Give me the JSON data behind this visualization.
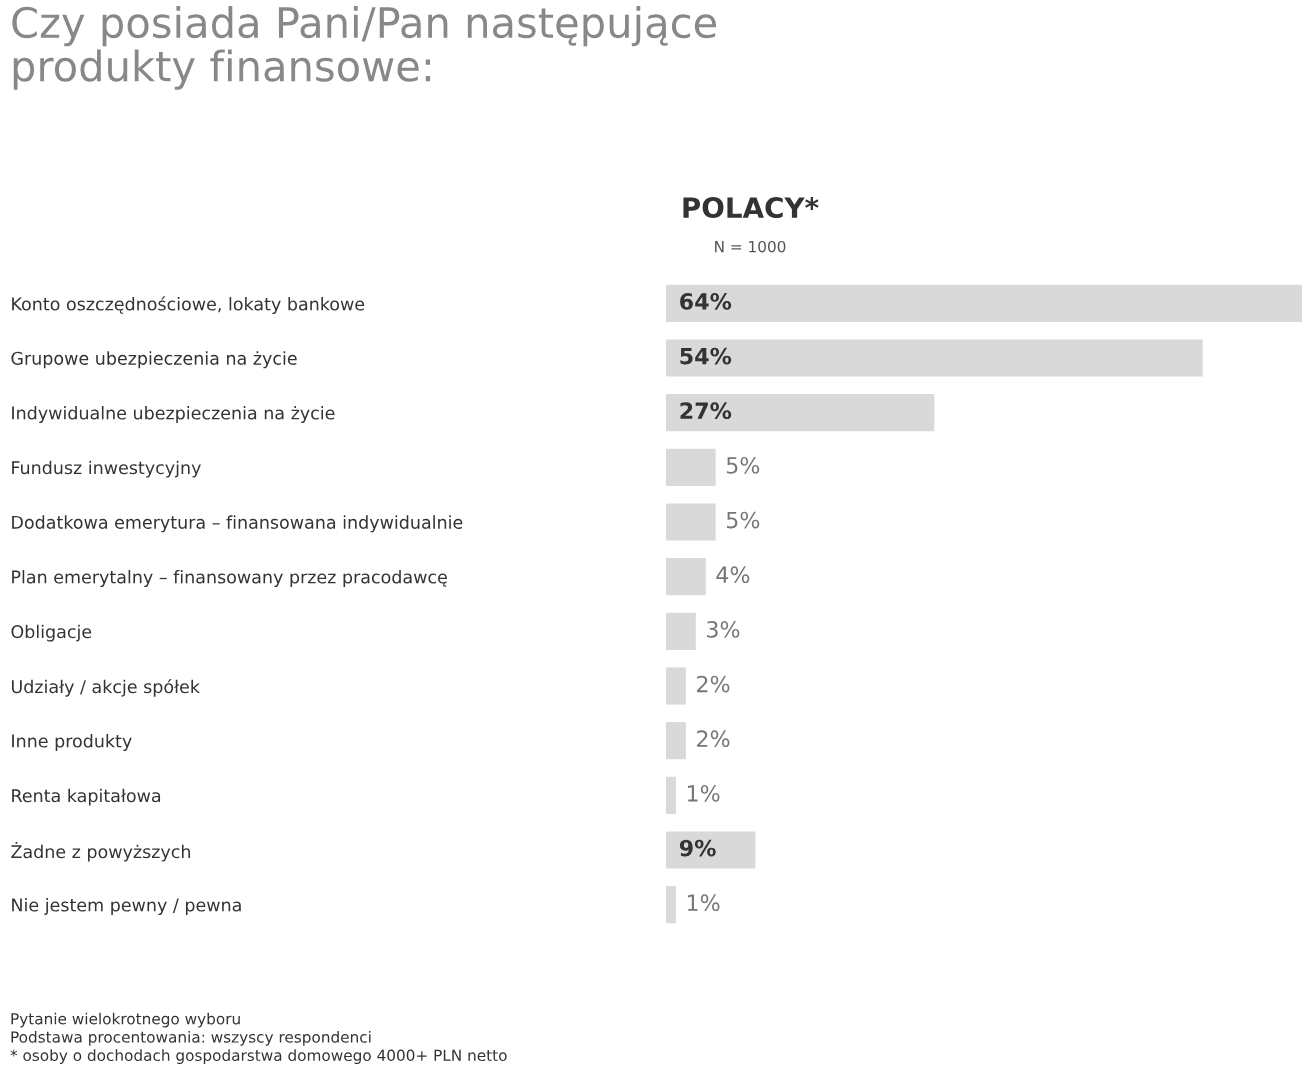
{
  "chart_data": {
    "type": "bar",
    "orientation": "horizontal",
    "title": "Czy posiada Pani/Pan następujące\nprodukty finansowe:",
    "subtitle": "POLACY*",
    "categories": [
      "Konto oszczędnościowe, lokaty bankowe",
      "Grupowe ubezpieczenia na życie",
      "Indywidualne ubezpieczenia na życie",
      "Fundusz inwestycyjny",
      "Dodatkowa emerytura – finansowana indywidualnie",
      "Plan emerytalny – finansowany przez pracodawcę",
      "Obligacje",
      "Udziały / akcje spółek",
      "Inne produkty",
      "Renta kapitałowa",
      "Żadne z powyższych",
      "Nie jestem pewny / pewna"
    ],
    "values": [
      64,
      54,
      27,
      5,
      5,
      4,
      3,
      2,
      2,
      1,
      9,
      1
    ],
    "color": "#d9d9d9",
    "data_labels": true,
    "value_labels": [
      "64%",
      "54%",
      "27%",
      "5%",
      "5%",
      "4%",
      "3%",
      "2%",
      "2%",
      "1%",
      "9%",
      "1%"
    ],
    "annotations": [
      "N = 1000",
      "Pytanie wielokrotnego wyboru\nPodstawa procentowania: wszyscy respondenci\n* osoby o dochodach gospodarstwa domowego 4000+ PLN netto"
    ],
    "grid": false,
    "tick_labels": "y"
  }
}
